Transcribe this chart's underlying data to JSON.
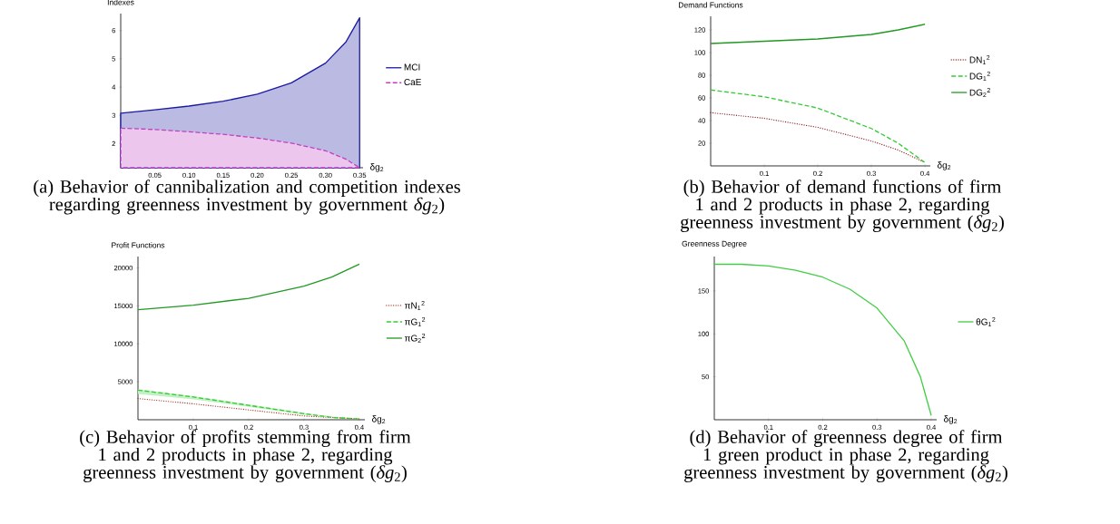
{
  "chart_data": [
    {
      "type": "area",
      "ylabel": "Indexes",
      "xlabel": "δg$_{2}$",
      "xlim": [
        0,
        0.355
      ],
      "ylim": [
        1.15,
        6.6
      ],
      "xticks": [
        0.05,
        {
          "value": 0.1,
          "label": "0.10"
        },
        0.15,
        {
          "value": 0.2,
          "label": "0.20"
        },
        0.25,
        {
          "value": 0.3,
          "label": "0.30"
        },
        0.35
      ],
      "yticks": [
        2,
        3,
        4,
        5,
        6
      ],
      "legend": "right",
      "x": [
        0,
        0.05,
        0.1,
        0.15,
        0.2,
        0.25,
        0.3,
        0.33,
        0.35
      ],
      "series": [
        {
          "name": "MCI",
          "color": "#1a1aa0",
          "line_style": "solid",
          "values": [
            3.08,
            3.2,
            3.33,
            3.5,
            3.75,
            4.15,
            4.85,
            5.6,
            6.45
          ]
        },
        {
          "name": "CaE",
          "color": "#c040c0",
          "line_style": "dashed",
          "values": [
            2.55,
            2.5,
            2.42,
            2.33,
            2.2,
            2.02,
            1.75,
            1.45,
            1.15
          ]
        }
      ],
      "annotations": [
        "(a) Behavior of cannibalization and competition indexes regarding greenness investment by government *δg*$_{2}$)"
      ]
    },
    {
      "type": "line",
      "ylabel": "Demand Functions",
      "xlabel": "δg$_{2}$",
      "xlim": [
        0,
        0.41
      ],
      "ylim": [
        0,
        132
      ],
      "xticks": [
        0.1,
        0.2,
        0.3,
        0.4
      ],
      "yticks": [
        20,
        40,
        60,
        80,
        100,
        120
      ],
      "legend": "right",
      "x": [
        0,
        0.1,
        0.2,
        0.3,
        0.35,
        0.4
      ],
      "series": [
        {
          "name": "DN$_{1}$$^{2}$",
          "color": "#8b1a1a",
          "line_style": "dotted",
          "values": [
            47,
            42,
            34,
            22,
            14,
            3
          ]
        },
        {
          "name": "DG$_{1}$$^{2}$",
          "color": "#33cc33",
          "line_style": "dashed",
          "values": [
            67,
            61,
            51,
            33,
            20,
            3
          ]
        },
        {
          "name": "DG$_{2}$$^{2}$",
          "color": "#229922",
          "line_style": "solid",
          "values": [
            108,
            110,
            112,
            116,
            120,
            125
          ]
        }
      ],
      "annotations": [
        "(b) Behavior of demand functions of firm 1 and 2 products in phase 2, regarding greenness investment by government (*δg*$_{2}$)"
      ]
    },
    {
      "type": "line",
      "ylabel": "Profit Functions",
      "xlabel": "δg$_{2}$",
      "xlim": [
        0,
        0.41
      ],
      "ylim": [
        0,
        21500
      ],
      "xticks": [
        0.1,
        0.2,
        0.3,
        0.4
      ],
      "yticks": [
        5000,
        10000,
        15000,
        20000
      ],
      "legend": "right",
      "x": [
        0,
        0.1,
        0.2,
        0.3,
        0.35,
        0.4
      ],
      "series": [
        {
          "name": "πN$_{1}$$^{2}$",
          "color": "#a03020",
          "line_style": "dotted",
          "values": [
            2800,
            2100,
            1300,
            500,
            300,
            100
          ]
        },
        {
          "name": "πG$_{1}$$^{2}$",
          "color": "#33cc33",
          "line_style": "dashed",
          "values": [
            3900,
            3000,
            1900,
            800,
            300,
            100
          ],
          "lower": [
            3400,
            2700,
            1700,
            650,
            350,
            120
          ],
          "upper": [
            4000,
            3100,
            2000,
            900,
            450,
            150
          ]
        },
        {
          "name": "πG$_{2}$$^{2}$",
          "color": "#229922",
          "line_style": "solid",
          "values": [
            14500,
            15100,
            16000,
            17600,
            18800,
            20500
          ]
        }
      ],
      "annotations": [
        "(c) Behavior of profits stemming from firm 1 and 2 products in phase 2, regarding greenness investment by government (*δg*$_{2}$)"
      ]
    },
    {
      "type": "line",
      "ylabel": "Greenness Degree",
      "xlabel": "δg$_{2}$",
      "xlim": [
        0,
        0.41
      ],
      "ylim": [
        0,
        190
      ],
      "xticks": [
        0.1,
        0.2,
        0.3,
        0.4
      ],
      "yticks": [
        50,
        100,
        150
      ],
      "legend": "right",
      "x": [
        0,
        0.05,
        0.1,
        0.15,
        0.2,
        0.25,
        0.3,
        0.35,
        0.38,
        0.4
      ],
      "series": [
        {
          "name": "θG$_{1}$$^{2}$",
          "color": "#44cc44",
          "line_style": "solid",
          "values": [
            181,
            181,
            179,
            174,
            166,
            152,
            130,
            92,
            50,
            5
          ]
        }
      ],
      "annotations": [
        "(d) Behavior of greenness degree of firm 1 green product in phase 2, regarding greenness investment by government (*δg*$_{2}$)"
      ]
    }
  ]
}
